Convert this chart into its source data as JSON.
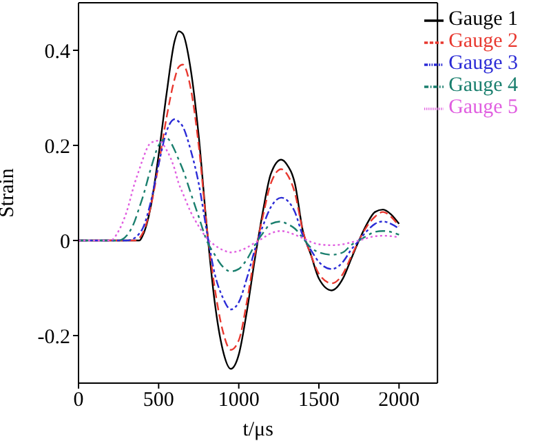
{
  "chart_data": {
    "type": "line",
    "xlabel": "t/μs",
    "ylabel": "Strain",
    "xlim": [
      0,
      2240
    ],
    "xticks": [
      0,
      500,
      1000,
      1500,
      2000
    ],
    "ylim": [
      -0.3,
      0.5
    ],
    "yticks": [
      -0.2,
      0,
      0.2,
      0.4
    ],
    "legend": "top right",
    "grid": false,
    "marker": "none",
    "x": [
      0,
      200,
      250,
      300,
      350,
      380,
      400,
      450,
      500,
      550,
      600,
      625,
      650,
      700,
      750,
      800,
      850,
      900,
      950,
      1000,
      1050,
      1100,
      1150,
      1200,
      1265,
      1300,
      1350,
      1400,
      1450,
      1500,
      1580,
      1650,
      1700,
      1750,
      1800,
      1850,
      1900,
      1950,
      2000
    ],
    "series": [
      {
        "name": "Gauge 1",
        "color": "#000000",
        "line_style": "solid",
        "values": [
          0,
          0,
          0,
          0,
          0,
          0,
          0.01,
          0.07,
          0.18,
          0.31,
          0.42,
          0.44,
          0.435,
          0.36,
          0.22,
          0.03,
          -0.13,
          -0.23,
          -0.27,
          -0.24,
          -0.15,
          -0.04,
          0.06,
          0.14,
          0.17,
          0.16,
          0.12,
          0.02,
          -0.03,
          -0.08,
          -0.105,
          -0.08,
          -0.04,
          0,
          0.035,
          0.06,
          0.065,
          0.055,
          0.035
        ]
      },
      {
        "name": "Gauge 2",
        "color": "#e8382f",
        "line_style": "dashed",
        "values": [
          0,
          0,
          0,
          0,
          0,
          0.005,
          0.015,
          0.07,
          0.16,
          0.26,
          0.34,
          0.365,
          0.37,
          0.32,
          0.2,
          0.03,
          -0.1,
          -0.19,
          -0.23,
          -0.21,
          -0.13,
          -0.03,
          0.05,
          0.12,
          0.15,
          0.14,
          0.1,
          0.02,
          -0.03,
          -0.07,
          -0.09,
          -0.07,
          -0.035,
          0,
          0.03,
          0.05,
          0.06,
          0.05,
          0.03
        ]
      },
      {
        "name": "Gauge 3",
        "color": "#2b2bd6",
        "line_style": "dashdotdot",
        "values": [
          0,
          0,
          0,
          0,
          0.005,
          0.015,
          0.025,
          0.08,
          0.16,
          0.23,
          0.255,
          0.25,
          0.24,
          0.19,
          0.12,
          0.02,
          -0.07,
          -0.12,
          -0.145,
          -0.13,
          -0.08,
          -0.02,
          0.03,
          0.07,
          0.09,
          0.085,
          0.06,
          0.01,
          -0.02,
          -0.045,
          -0.06,
          -0.045,
          -0.02,
          0,
          0.02,
          0.035,
          0.04,
          0.035,
          0.025
        ]
      },
      {
        "name": "Gauge 4",
        "color": "#1a7f6e",
        "line_style": "dashdot",
        "values": [
          0,
          0,
          0,
          0.01,
          0.04,
          0.07,
          0.09,
          0.15,
          0.2,
          0.215,
          0.19,
          0.17,
          0.15,
          0.1,
          0.05,
          0,
          -0.03,
          -0.055,
          -0.065,
          -0.06,
          -0.04,
          -0.01,
          0.015,
          0.035,
          0.04,
          0.035,
          0.025,
          0.005,
          -0.015,
          -0.025,
          -0.03,
          -0.025,
          -0.01,
          0,
          0.01,
          0.018,
          0.02,
          0.018,
          0.012
        ]
      },
      {
        "name": "Gauge 5",
        "color": "#e05ee0",
        "line_style": "dotted",
        "values": [
          0,
          0,
          0.02,
          0.06,
          0.12,
          0.15,
          0.17,
          0.205,
          0.21,
          0.19,
          0.15,
          0.12,
          0.1,
          0.06,
          0.03,
          0.005,
          -0.01,
          -0.02,
          -0.025,
          -0.022,
          -0.015,
          -0.005,
          0.005,
          0.015,
          0.02,
          0.018,
          0.012,
          0.005,
          -0.003,
          -0.008,
          -0.01,
          -0.008,
          -0.004,
          0,
          0.005,
          0.009,
          0.01,
          0.009,
          0.007
        ]
      }
    ]
  }
}
